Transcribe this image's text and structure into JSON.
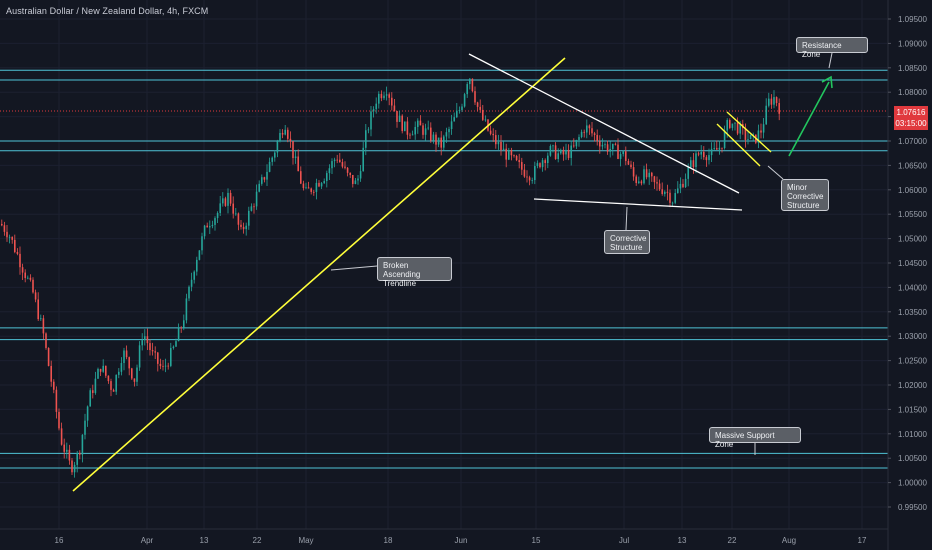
{
  "header": {
    "title": "Australian Dollar / New Zealand Dollar, 4h, FXCM"
  },
  "price_tag": {
    "price": "1.07616",
    "countdown": "03:15:00",
    "color": "#e0393e"
  },
  "annotations": {
    "resistance_zone": "Resistance Zone",
    "minor_corrective": "Minor\nCorrective\nStructure",
    "corrective_structure": "Corrective\nStructure",
    "broken_trendline": "Broken Ascending\nTrendline",
    "massive_support": "Massive Support Zone"
  },
  "colors": {
    "background": "#131722",
    "zone_line": "#4fc3d6",
    "trendline": "#ffff3a",
    "wedge": "#ffffff",
    "arrow": "#22c55e",
    "candle_up": "#26a69a",
    "candle_down": "#ef5350",
    "current_price_line": "#e0393e"
  },
  "chart_data": {
    "type": "candlestick",
    "symbol": "AUDNZD",
    "interval": "4h",
    "source": "FXCM",
    "y_axis_ticks": [
      "1.09500",
      "1.09000",
      "1.08500",
      "1.08000",
      "1.07500",
      "1.07000",
      "1.06500",
      "1.06000",
      "1.05500",
      "1.05000",
      "1.04500",
      "1.04000",
      "1.03500",
      "1.03000",
      "1.02500",
      "1.02000",
      "1.01500",
      "1.01000",
      "1.00500",
      "1.00000",
      "0.99500"
    ],
    "ylim": [
      0.993,
      1.0975
    ],
    "x_axis_ticks": [
      "16",
      "Apr",
      "13",
      "22",
      "May",
      "18",
      "Jun",
      "15",
      "Jul",
      "13",
      "22",
      "Aug",
      "17"
    ],
    "current_price": 1.07616,
    "horizontal_levels": [
      1.0845,
      1.0825,
      1.07,
      1.068,
      1.0317,
      1.0293,
      1.006,
      1.003
    ],
    "price_path": [
      [
        0,
        1.053
      ],
      [
        8,
        1.051
      ],
      [
        20,
        1.045
      ],
      [
        32,
        1.039
      ],
      [
        42,
        1.031
      ],
      [
        52,
        1.019
      ],
      [
        60,
        1.009
      ],
      [
        70,
        1.003
      ],
      [
        78,
        1.006
      ],
      [
        88,
        1.017
      ],
      [
        100,
        1.024
      ],
      [
        112,
        1.019
      ],
      [
        122,
        1.027
      ],
      [
        134,
        1.021
      ],
      [
        142,
        1.031
      ],
      [
        152,
        1.026
      ],
      [
        162,
        1.023
      ],
      [
        172,
        1.027
      ],
      [
        182,
        1.033
      ],
      [
        194,
        1.045
      ],
      [
        206,
        1.053
      ],
      [
        216,
        1.055
      ],
      [
        228,
        1.059
      ],
      [
        240,
        1.051
      ],
      [
        250,
        1.056
      ],
      [
        260,
        1.061
      ],
      [
        272,
        1.067
      ],
      [
        284,
        1.074
      ],
      [
        294,
        1.066
      ],
      [
        304,
        1.059
      ],
      [
        314,
        1.061
      ],
      [
        324,
        1.063
      ],
      [
        336,
        1.067
      ],
      [
        346,
        1.063
      ],
      [
        356,
        1.061
      ],
      [
        366,
        1.072
      ],
      [
        376,
        1.079
      ],
      [
        386,
        1.081
      ],
      [
        396,
        1.075
      ],
      [
        406,
        1.072
      ],
      [
        418,
        1.073
      ],
      [
        430,
        1.071
      ],
      [
        440,
        1.069
      ],
      [
        450,
        1.073
      ],
      [
        460,
        1.077
      ],
      [
        468,
        1.084
      ],
      [
        478,
        1.076
      ],
      [
        490,
        1.071
      ],
      [
        502,
        1.068
      ],
      [
        512,
        1.066
      ],
      [
        522,
        1.064
      ],
      [
        532,
        1.063
      ],
      [
        540,
        1.066
      ],
      [
        550,
        1.068
      ],
      [
        560,
        1.067
      ],
      [
        572,
        1.068
      ],
      [
        584,
        1.073
      ],
      [
        594,
        1.071
      ],
      [
        604,
        1.069
      ],
      [
        614,
        1.068
      ],
      [
        624,
        1.067
      ],
      [
        634,
        1.062
      ],
      [
        644,
        1.063
      ],
      [
        654,
        1.061
      ],
      [
        664,
        1.06
      ],
      [
        672,
        1.058
      ],
      [
        680,
        1.061
      ],
      [
        690,
        1.065
      ],
      [
        700,
        1.068
      ],
      [
        710,
        1.067
      ],
      [
        720,
        1.069
      ],
      [
        728,
        1.074
      ],
      [
        736,
        1.073
      ],
      [
        744,
        1.071
      ],
      [
        752,
        1.07
      ],
      [
        760,
        1.072
      ],
      [
        768,
        1.078
      ],
      [
        774,
        1.079
      ],
      [
        780,
        1.0762
      ]
    ]
  }
}
